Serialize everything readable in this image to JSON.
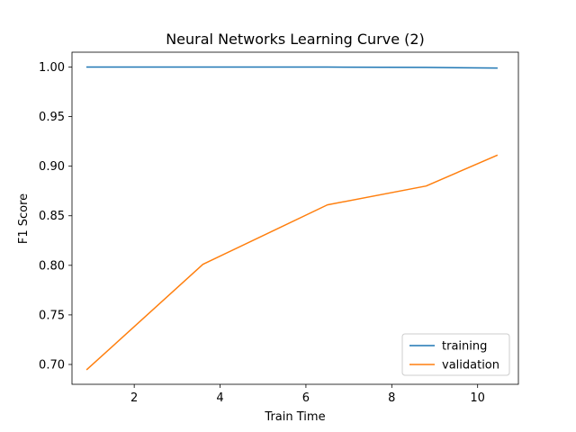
{
  "chart_data": {
    "type": "line",
    "title": "Neural Networks Learning Curve (2)",
    "xlabel": "Train Time",
    "ylabel": "F1 Score",
    "xlim": [
      0.55,
      10.95
    ],
    "ylim": [
      0.68,
      1.015
    ],
    "xticks": [
      2,
      4,
      6,
      8,
      10
    ],
    "xtick_labels": [
      "2",
      "4",
      "6",
      "8",
      "10"
    ],
    "yticks": [
      0.7,
      0.75,
      0.8,
      0.85,
      0.9,
      0.95,
      1.0
    ],
    "ytick_labels": [
      "0.70",
      "0.75",
      "0.80",
      "0.85",
      "0.90",
      "0.95",
      "1.00"
    ],
    "grid": false,
    "legend_position": "bottom-right",
    "series": [
      {
        "name": "training",
        "color": "#1f77b4",
        "x": [
          0.9,
          3.6,
          6.5,
          8.8,
          10.45
        ],
        "y": [
          1.0,
          1.0,
          1.0,
          0.9997,
          0.999
        ]
      },
      {
        "name": "validation",
        "color": "#ff7f0e",
        "x": [
          0.9,
          3.6,
          6.5,
          8.8,
          10.45
        ],
        "y": [
          0.695,
          0.801,
          0.861,
          0.88,
          0.911
        ]
      }
    ]
  }
}
